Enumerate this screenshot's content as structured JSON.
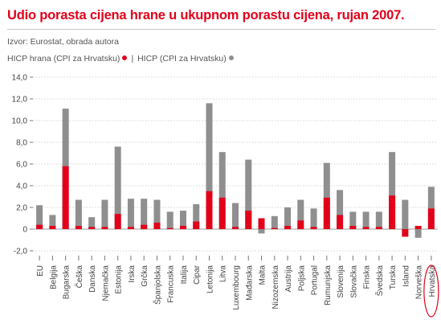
{
  "title": "Udio porasta cijena hrane u ukupnom porastu cijena, rujan 2007.",
  "source": "Izvor: Eurostat, obrada autora",
  "legend": {
    "series1": "HICP hrana (CPI za Hrvatsku)",
    "separator": "|",
    "series2": "HICP (CPI za Hrvatsku)"
  },
  "colors": {
    "food": "#e2001a",
    "total": "#8f8f8f",
    "title": "#e2001a",
    "highlight": "#e2001a"
  },
  "chart_data": {
    "type": "bar",
    "categories": [
      "EU",
      "Belgija",
      "Bugarska",
      "Češka",
      "Danska",
      "Njemačka",
      "Estonija",
      "Irska",
      "Grčka",
      "Španjolska",
      "Francuska",
      "Italija",
      "Cipar",
      "Letonija",
      "Litva",
      "Luxembourg",
      "Mađarska",
      "Malta",
      "Nizozemska",
      "Austrija",
      "Poljska",
      "Portugal",
      "Rumunjska",
      "Slovenija",
      "Slovačka",
      "Finska",
      "Švedska",
      "Turska",
      "Island",
      "Norveška",
      "Hrvatska"
    ],
    "series": [
      {
        "name": "HICP hrana (CPI za Hrvatsku)",
        "values": [
          0.4,
          0.3,
          5.8,
          0.3,
          0.2,
          0.2,
          1.4,
          0.2,
          0.4,
          0.6,
          0.1,
          0.3,
          0.7,
          3.5,
          2.9,
          0.2,
          1.7,
          1.0,
          0.1,
          0.3,
          0.8,
          0.2,
          2.9,
          1.3,
          0.3,
          0.2,
          0.2,
          3.1,
          -0.7,
          0.3,
          1.9
        ]
      },
      {
        "name": "HICP (CPI za Hrvatsku)",
        "values": [
          2.2,
          1.3,
          11.1,
          2.7,
          1.1,
          2.7,
          7.6,
          2.8,
          2.8,
          2.7,
          1.6,
          1.7,
          2.3,
          11.6,
          7.1,
          2.4,
          6.4,
          -0.4,
          1.2,
          2.0,
          2.7,
          1.9,
          6.1,
          3.6,
          1.6,
          1.6,
          1.6,
          7.1,
          2.7,
          -0.8,
          3.9
        ]
      }
    ],
    "ylim": [
      -2,
      14
    ],
    "yticks": [
      "-2,0",
      "0",
      "2,0",
      "4,0",
      "6,0",
      "8,0",
      "10,0",
      "12,0",
      "14,0"
    ],
    "grid": true,
    "highlighted_category": "Hrvatska"
  }
}
